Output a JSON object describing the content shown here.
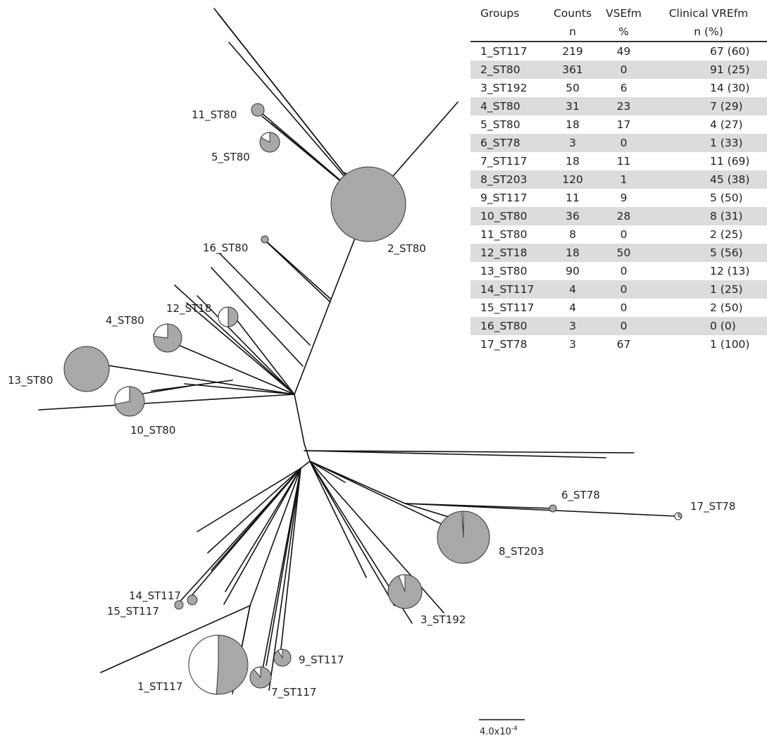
{
  "table": {
    "headers": [
      "Groups",
      "Counts",
      "VSEfm",
      "Clinical VREfm"
    ],
    "subheaders": [
      "",
      "n",
      "%",
      "n (%)"
    ],
    "rows": [
      {
        "group": "1_ST117",
        "counts": "219",
        "vse": "49",
        "clinical": "67 (60)"
      },
      {
        "group": "2_ST80",
        "counts": "361",
        "vse": "0",
        "clinical": "91 (25)"
      },
      {
        "group": "3_ST192",
        "counts": "50",
        "vse": "6",
        "clinical": "14 (30)"
      },
      {
        "group": "4_ST80",
        "counts": "31",
        "vse": "23",
        "clinical": "7 (29)"
      },
      {
        "group": "5_ST80",
        "counts": "18",
        "vse": "17",
        "clinical": "4 (27)"
      },
      {
        "group": "6_ST78",
        "counts": "3",
        "vse": "0",
        "clinical": "1 (33)"
      },
      {
        "group": "7_ST117",
        "counts": "18",
        "vse": "11",
        "clinical": "11 (69)"
      },
      {
        "group": "8_ST203",
        "counts": "120",
        "vse": "1",
        "clinical": "45 (38)"
      },
      {
        "group": "9_ST117",
        "counts": "11",
        "vse": "9",
        "clinical": "5 (50)"
      },
      {
        "group": "10_ST80",
        "counts": "36",
        "vse": "28",
        "clinical": "8 (31)"
      },
      {
        "group": "11_ST80",
        "counts": "8",
        "vse": "0",
        "clinical": "2 (25)"
      },
      {
        "group": "12_ST18",
        "counts": "18",
        "vse": "50",
        "clinical": "5 (56)"
      },
      {
        "group": "13_ST80",
        "counts": "90",
        "vse": "0",
        "clinical": "12 (13)"
      },
      {
        "group": "14_ST117",
        "counts": "4",
        "vse": "0",
        "clinical": "1 (25)"
      },
      {
        "group": "15_ST117",
        "counts": "4",
        "vse": "0",
        "clinical": "2 (50)"
      },
      {
        "group": "16_ST80",
        "counts": "3",
        "vse": "0",
        "clinical": "0  (0)"
      },
      {
        "group": "17_ST78",
        "counts": "3",
        "vse": "67",
        "clinical": "1 (100)"
      }
    ]
  },
  "tree": {
    "clades": [
      {
        "id": "1_ST117",
        "vse_pct": 49
      },
      {
        "id": "2_ST80",
        "vse_pct": 0
      },
      {
        "id": "3_ST192",
        "vse_pct": 6
      },
      {
        "id": "4_ST80",
        "vse_pct": 23
      },
      {
        "id": "5_ST80",
        "vse_pct": 17
      },
      {
        "id": "6_ST78",
        "vse_pct": 0
      },
      {
        "id": "7_ST117",
        "vse_pct": 11
      },
      {
        "id": "8_ST203",
        "vse_pct": 1
      },
      {
        "id": "9_ST117",
        "vse_pct": 9
      },
      {
        "id": "10_ST80",
        "vse_pct": 28
      },
      {
        "id": "11_ST80",
        "vse_pct": 0
      },
      {
        "id": "12_ST18",
        "vse_pct": 50
      },
      {
        "id": "13_ST80",
        "vse_pct": 0
      },
      {
        "id": "14_ST117",
        "vse_pct": 0
      },
      {
        "id": "15_ST117",
        "vse_pct": 0
      },
      {
        "id": "16_ST80",
        "vse_pct": 0
      },
      {
        "id": "17_ST78",
        "vse_pct": 67
      }
    ],
    "scale_bar": {
      "base": "4.0x10",
      "exponent": "-4"
    }
  },
  "colors": {
    "clinical_fill": "#a8a8a8",
    "vse_fill": "#ffffff",
    "branch": "#111111",
    "row_shade": "#dcdcdc"
  }
}
